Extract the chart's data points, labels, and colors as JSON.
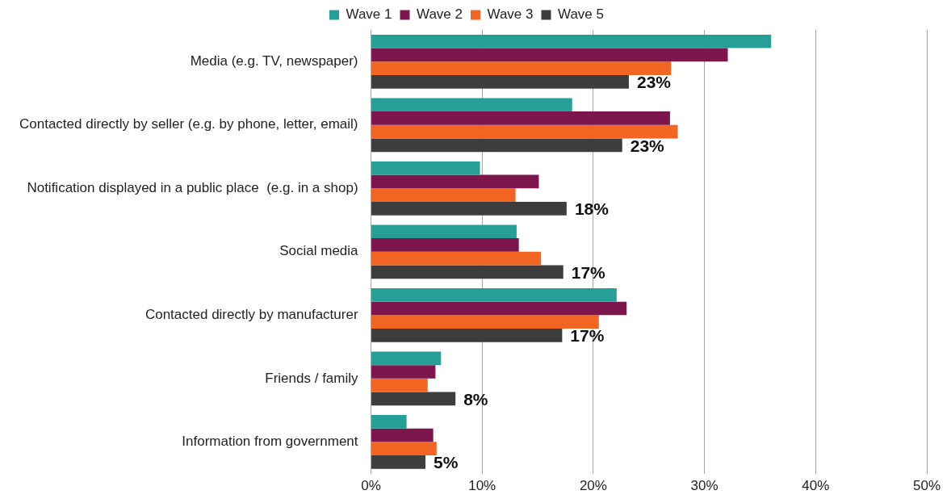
{
  "chart_data": {
    "type": "bar",
    "orientation": "horizontal",
    "categories": [
      "Media (e.g. TV, newspaper)",
      "Contacted directly by seller (e.g. by phone, letter, email)",
      "Notification displayed in a public place  (e.g. in a shop)",
      "Social media",
      "Contacted directly by manufacturer",
      "Friends / family",
      "Information from government"
    ],
    "series": [
      {
        "name": "Wave 1",
        "color": "#26a096",
        "values": [
          36.0,
          18.1,
          9.8,
          13.1,
          22.1,
          6.3,
          3.2
        ]
      },
      {
        "name": "Wave 2",
        "color": "#7d164d",
        "values": [
          32.1,
          26.9,
          15.1,
          13.3,
          23.0,
          5.8,
          5.6
        ]
      },
      {
        "name": "Wave 3",
        "color": "#f26522",
        "values": [
          27.0,
          27.6,
          13.0,
          15.3,
          20.5,
          5.1,
          5.9
        ]
      },
      {
        "name": "Wave 5",
        "color": "#3d3d3d",
        "values": [
          23.2,
          22.6,
          17.6,
          17.3,
          17.2,
          7.6,
          4.9
        ],
        "value_labels": [
          "23%",
          "23%",
          "18%",
          "17%",
          "17%",
          "8%",
          "5%"
        ]
      }
    ],
    "xlim": [
      0,
      50
    ],
    "xticks": [
      {
        "value": 0,
        "label": "0%"
      },
      {
        "value": 10,
        "label": "10%"
      },
      {
        "value": 20,
        "label": "20%"
      },
      {
        "value": 30,
        "label": "30%"
      },
      {
        "value": 40,
        "label": "40%"
      },
      {
        "value": 50,
        "label": "50%"
      }
    ],
    "grid": "x",
    "legend": "top"
  }
}
